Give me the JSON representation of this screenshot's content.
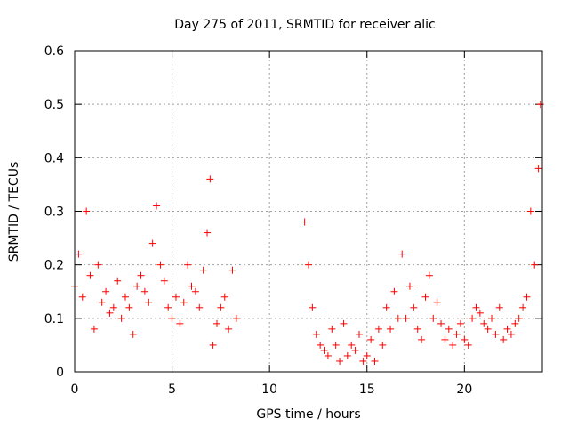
{
  "chart_data": {
    "type": "scatter",
    "title": "Day 275 of 2011, SRMTID for receiver alic",
    "xlabel": "GPS time / hours",
    "ylabel": "SRMTID / TECUs",
    "xlim": [
      0,
      24
    ],
    "ylim": [
      0,
      0.6
    ],
    "xticks": [
      0,
      5,
      10,
      15,
      20
    ],
    "yticks": [
      0,
      0.1,
      0.2,
      0.3,
      0.4,
      0.5,
      0.6
    ],
    "xtick_labels": [
      "0",
      "5",
      "10",
      "15",
      "20"
    ],
    "ytick_labels": [
      "0",
      "0.1",
      "0.2",
      "0.3",
      "0.4",
      "0.5",
      "0.6"
    ],
    "grid": true,
    "marker": "+",
    "color": "#ff0000",
    "series": [
      {
        "name": "SRMTID",
        "x": [
          0.0,
          0.2,
          0.4,
          0.6,
          0.8,
          1.0,
          1.2,
          1.4,
          1.6,
          1.8,
          2.0,
          2.2,
          2.4,
          2.6,
          2.8,
          3.0,
          3.2,
          3.4,
          3.6,
          3.8,
          4.0,
          4.2,
          4.4,
          4.6,
          4.8,
          5.0,
          5.2,
          5.4,
          5.6,
          5.8,
          6.0,
          6.2,
          6.4,
          6.6,
          6.8,
          6.95,
          7.1,
          7.3,
          7.5,
          7.7,
          7.9,
          8.1,
          8.3,
          11.8,
          12.0,
          12.2,
          12.4,
          12.6,
          12.8,
          13.0,
          13.2,
          13.4,
          13.6,
          13.8,
          14.0,
          14.2,
          14.4,
          14.6,
          14.8,
          15.0,
          15.2,
          15.4,
          15.6,
          15.8,
          16.0,
          16.2,
          16.4,
          16.6,
          16.8,
          17.0,
          17.2,
          17.4,
          17.6,
          17.8,
          18.0,
          18.2,
          18.4,
          18.6,
          18.8,
          19.0,
          19.2,
          19.4,
          19.6,
          19.8,
          20.0,
          20.2,
          20.4,
          20.6,
          20.8,
          21.0,
          21.2,
          21.4,
          21.6,
          21.8,
          22.0,
          22.2,
          22.4,
          22.6,
          22.8,
          23.0,
          23.2,
          23.4,
          23.6,
          23.8,
          23.9
        ],
        "y": [
          0.16,
          0.22,
          0.14,
          0.3,
          0.18,
          0.08,
          0.2,
          0.13,
          0.15,
          0.11,
          0.12,
          0.17,
          0.1,
          0.14,
          0.12,
          0.07,
          0.16,
          0.18,
          0.15,
          0.13,
          0.24,
          0.31,
          0.2,
          0.17,
          0.12,
          0.1,
          0.14,
          0.09,
          0.13,
          0.2,
          0.16,
          0.15,
          0.12,
          0.19,
          0.26,
          0.36,
          0.05,
          0.09,
          0.12,
          0.14,
          0.08,
          0.19,
          0.1,
          0.28,
          0.2,
          0.12,
          0.07,
          0.05,
          0.04,
          0.03,
          0.08,
          0.05,
          0.02,
          0.09,
          0.03,
          0.05,
          0.04,
          0.07,
          0.02,
          0.03,
          0.06,
          0.02,
          0.08,
          0.05,
          0.12,
          0.08,
          0.15,
          0.1,
          0.22,
          0.1,
          0.16,
          0.12,
          0.08,
          0.06,
          0.14,
          0.18,
          0.1,
          0.13,
          0.09,
          0.06,
          0.08,
          0.05,
          0.07,
          0.09,
          0.06,
          0.05,
          0.1,
          0.12,
          0.11,
          0.09,
          0.08,
          0.1,
          0.07,
          0.12,
          0.06,
          0.08,
          0.07,
          0.09,
          0.1,
          0.12,
          0.14,
          0.3,
          0.2,
          0.38,
          0.5
        ]
      }
    ]
  }
}
